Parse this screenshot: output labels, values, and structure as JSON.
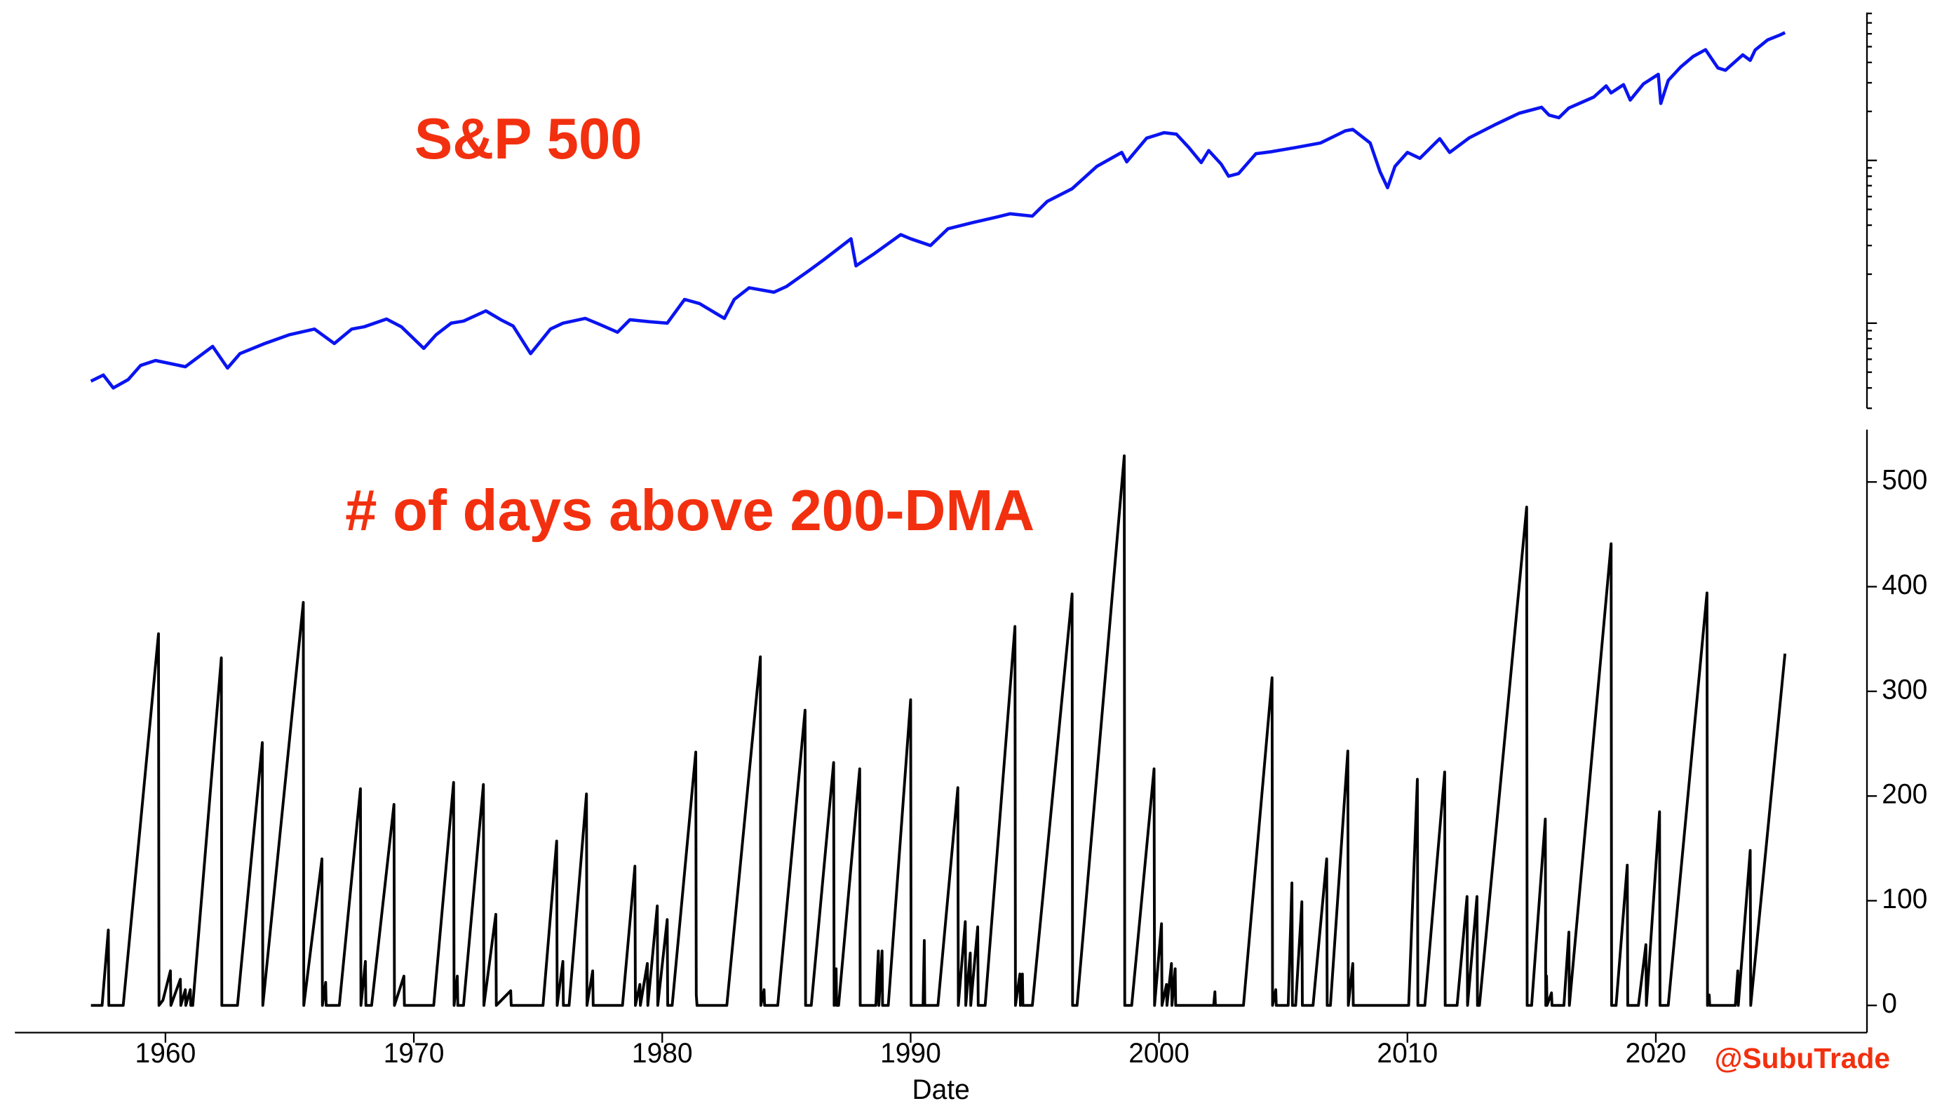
{
  "chart_data": [
    {
      "type": "line",
      "title": "S&P 500",
      "color": "#0a14f0",
      "yscale": "log",
      "xlim": [
        1953.94,
        2028.5
      ],
      "ylim": [
        30,
        8100
      ],
      "x": [
        1957.0,
        1957.5,
        1957.9,
        1958.5,
        1959.0,
        1959.6,
        1960.8,
        1961.9,
        1962.5,
        1963.0,
        1964.0,
        1965.0,
        1966.0,
        1966.8,
        1967.5,
        1968.0,
        1968.9,
        1969.5,
        1970.4,
        1970.9,
        1971.5,
        1972.0,
        1972.9,
        1973.5,
        1974.0,
        1974.7,
        1975.5,
        1976.0,
        1976.9,
        1977.5,
        1978.2,
        1978.7,
        1979.5,
        1980.2,
        1980.9,
        1981.5,
        1982.5,
        1982.9,
        1983.5,
        1984.5,
        1985.0,
        1985.9,
        1986.5,
        1987.6,
        1987.8,
        1988.5,
        1989.6,
        1990.0,
        1990.8,
        1991.5,
        1992.5,
        1993.5,
        1994.0,
        1994.9,
        1995.5,
        1996.5,
        1997.5,
        1998.5,
        1998.7,
        1999.5,
        2000.2,
        2000.7,
        2001.2,
        2001.7,
        2002.0,
        2002.5,
        2002.8,
        2003.2,
        2003.9,
        2004.5,
        2005.5,
        2006.5,
        2007.5,
        2007.8,
        2008.5,
        2008.9,
        2009.2,
        2009.5,
        2010.0,
        2010.5,
        2011.3,
        2011.7,
        2012.5,
        2013.5,
        2014.5,
        2015.4,
        2015.7,
        2016.1,
        2016.5,
        2017.5,
        2018.0,
        2018.2,
        2018.7,
        2018.97,
        2019.5,
        2020.1,
        2020.2,
        2020.5,
        2021.0,
        2021.5,
        2022.0,
        2022.5,
        2022.8,
        2023.5,
        2023.8,
        2024.0,
        2024.5,
        2025.0,
        2025.2
      ],
      "values": [
        44,
        48,
        40,
        45,
        55,
        59,
        54,
        72,
        53,
        65,
        75,
        85,
        92,
        75,
        92,
        95,
        106,
        95,
        70,
        85,
        100,
        103,
        119,
        105,
        96,
        65,
        92,
        100,
        107,
        98,
        88,
        105,
        102,
        100,
        140,
        132,
        107,
        140,
        165,
        155,
        168,
        210,
        245,
        330,
        225,
        265,
        350,
        330,
        300,
        380,
        415,
        450,
        470,
        455,
        560,
        670,
        920,
        1120,
        980,
        1370,
        1480,
        1450,
        1200,
        970,
        1150,
        950,
        800,
        830,
        1100,
        1130,
        1200,
        1280,
        1520,
        1550,
        1280,
        850,
        680,
        920,
        1120,
        1030,
        1360,
        1120,
        1380,
        1650,
        1950,
        2120,
        1900,
        1830,
        2100,
        2450,
        2870,
        2600,
        2920,
        2350,
        2950,
        3380,
        2240,
        3100,
        3750,
        4350,
        4790,
        3700,
        3580,
        4450,
        4120,
        4770,
        5500,
        5900,
        6100
      ]
    },
    {
      "type": "line",
      "title": "# of days above 200-DMA",
      "xlabel": "Date",
      "annotation": "@SubuTrade",
      "color": "#000000",
      "xlim": [
        1953.94,
        2028.5
      ],
      "xticks": [
        1960,
        1970,
        1980,
        1990,
        2000,
        2010,
        2020
      ],
      "ylim": [
        -26,
        550
      ],
      "yticks": [
        0,
        100,
        200,
        300,
        400,
        500
      ],
      "x": [
        1957.0,
        1957.45,
        1957.7,
        1957.72,
        1958.3,
        1959.72,
        1959.74,
        1959.9,
        1960.2,
        1960.22,
        1960.6,
        1960.62,
        1960.8,
        1960.82,
        1961.0,
        1961.02,
        1961.1,
        1962.25,
        1962.27,
        1962.9,
        1963.9,
        1963.92,
        1965.55,
        1965.57,
        1966.3,
        1966.32,
        1966.45,
        1966.47,
        1967.0,
        1967.85,
        1967.87,
        1968.05,
        1968.07,
        1968.3,
        1969.2,
        1969.22,
        1969.6,
        1969.62,
        1970.8,
        1971.6,
        1971.62,
        1971.75,
        1971.77,
        1972.0,
        1972.8,
        1972.82,
        1973.3,
        1973.32,
        1973.9,
        1973.92,
        1975.2,
        1975.75,
        1975.77,
        1976.0,
        1976.02,
        1976.25,
        1976.95,
        1976.97,
        1977.2,
        1977.22,
        1977.8,
        1978.4,
        1978.9,
        1978.92,
        1979.1,
        1979.12,
        1979.4,
        1979.42,
        1979.8,
        1979.82,
        1980.2,
        1980.22,
        1980.4,
        1981.35,
        1981.37,
        1981.4,
        1982.6,
        1983.95,
        1983.97,
        1984.1,
        1984.12,
        1984.65,
        1985.75,
        1985.77,
        1986.0,
        1986.9,
        1986.92,
        1987.0,
        1987.02,
        1987.1,
        1987.95,
        1987.97,
        1988.6,
        1988.7,
        1988.72,
        1988.85,
        1988.87,
        1989.1,
        1990.0,
        1990.02,
        1990.5,
        1990.55,
        1990.57,
        1991.1,
        1991.9,
        1991.92,
        1992.2,
        1992.22,
        1992.4,
        1992.42,
        1992.7,
        1992.72,
        1993.0,
        1994.2,
        1994.22,
        1994.4,
        1994.42,
        1994.5,
        1994.52,
        1994.9,
        1996.5,
        1996.52,
        1996.7,
        1998.6,
        1998.62,
        1998.9,
        1999.8,
        1999.82,
        2000.1,
        2000.12,
        2000.3,
        2000.32,
        2000.5,
        2000.52,
        2000.65,
        2000.67,
        2002.2,
        2002.25,
        2002.27,
        2003.4,
        2004.55,
        2004.57,
        2004.7,
        2004.72,
        2005.2,
        2005.35,
        2005.37,
        2005.5,
        2005.75,
        2005.77,
        2006.2,
        2006.75,
        2006.77,
        2006.9,
        2007.6,
        2007.62,
        2007.8,
        2007.82,
        2009.5,
        2010.05,
        2010.4,
        2010.42,
        2010.7,
        2011.5,
        2011.52,
        2012.0,
        2012.4,
        2012.42,
        2012.8,
        2012.82,
        2012.9,
        2014.8,
        2014.82,
        2015.0,
        2015.55,
        2015.57,
        2015.6,
        2015.62,
        2015.8,
        2015.82,
        2016.3,
        2016.5,
        2016.52,
        2018.2,
        2018.22,
        2018.4,
        2018.85,
        2018.87,
        2019.3,
        2019.6,
        2019.62,
        2020.15,
        2020.17,
        2020.5,
        2022.06,
        2022.08,
        2022.15,
        2022.17,
        2023.2,
        2023.3,
        2023.32,
        2023.8,
        2023.82,
        2025.2
      ],
      "values": [
        0,
        0,
        72,
        0,
        0,
        355,
        0,
        5,
        33,
        0,
        25,
        0,
        15,
        0,
        15,
        0,
        0,
        332,
        0,
        0,
        251,
        0,
        385,
        0,
        140,
        0,
        22,
        0,
        0,
        207,
        0,
        42,
        0,
        0,
        192,
        0,
        28,
        0,
        0,
        213,
        0,
        28,
        0,
        0,
        211,
        0,
        87,
        0,
        14,
        0,
        0,
        157,
        0,
        42,
        0,
        0,
        202,
        0,
        33,
        0,
        0,
        0,
        133,
        0,
        20,
        0,
        40,
        0,
        95,
        0,
        82,
        0,
        0,
        242,
        10,
        0,
        0,
        333,
        0,
        15,
        0,
        0,
        282,
        0,
        0,
        232,
        0,
        35,
        0,
        0,
        226,
        0,
        0,
        52,
        0,
        52,
        0,
        0,
        292,
        0,
        0,
        62,
        0,
        0,
        208,
        0,
        80,
        0,
        50,
        0,
        75,
        0,
        0,
        362,
        0,
        30,
        0,
        30,
        0,
        0,
        393,
        0,
        0,
        525,
        0,
        0,
        226,
        0,
        78,
        0,
        20,
        0,
        40,
        0,
        35,
        0,
        0,
        13,
        0,
        0,
        313,
        0,
        15,
        0,
        0,
        117,
        0,
        0,
        99,
        0,
        0,
        140,
        0,
        0,
        243,
        0,
        40,
        0,
        0,
        0,
        216,
        0,
        0,
        223,
        0,
        0,
        104,
        0,
        104,
        0,
        0,
        476,
        0,
        0,
        178,
        0,
        28,
        0,
        12,
        0,
        0,
        70,
        0,
        441,
        0,
        0,
        134,
        0,
        0,
        58,
        0,
        185,
        0,
        0,
        394,
        0,
        10,
        0,
        0,
        33,
        0,
        148,
        0,
        336
      ]
    }
  ]
}
